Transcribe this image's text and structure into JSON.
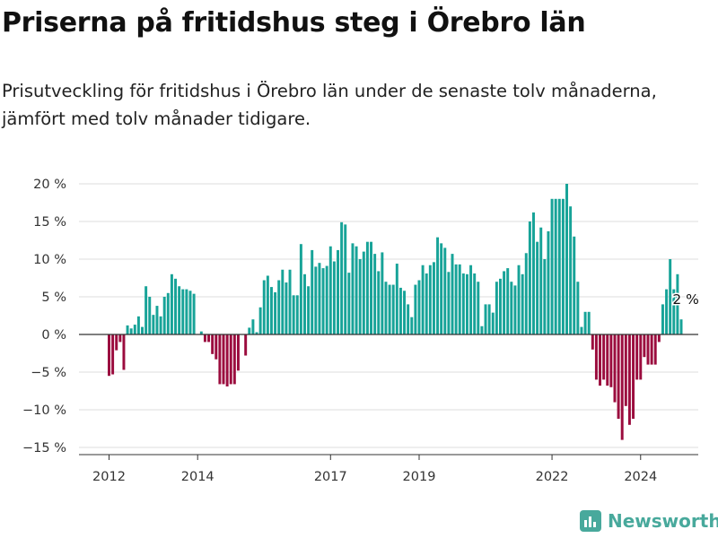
{
  "title": "Priserna på fritidshus steg i Örebro län",
  "subtitle": "Prisutveckling för fritidshus i Örebro län under de senaste tolv månaderna, jämfört med tolv månader tidigare.",
  "brand": {
    "name": "Newsworthy",
    "icon": "newsworthy-logo-icon",
    "color": "#48a99c"
  },
  "colors": {
    "positive": "#17a398",
    "negative": "#9b0c3e",
    "grid": "#dddddd",
    "zero": "#333333"
  },
  "chart_data": {
    "type": "bar",
    "ylim": [
      -15,
      20
    ],
    "grid": true,
    "y_ticks": [
      {
        "value": 20,
        "label": "20 %"
      },
      {
        "value": 15,
        "label": "15 %"
      },
      {
        "value": 10,
        "label": "10 %"
      },
      {
        "value": 5,
        "label": "5 %"
      },
      {
        "value": 0,
        "label": "0 %"
      },
      {
        "value": -5,
        "label": "−5 %"
      },
      {
        "value": -10,
        "label": "−10 %"
      },
      {
        "value": -15,
        "label": "−15 %"
      }
    ],
    "x_ticks": [
      {
        "label": "2012",
        "index": 0
      },
      {
        "label": "2014",
        "index": 24
      },
      {
        "label": "2017",
        "index": 60
      },
      {
        "label": "2019",
        "index": 84
      },
      {
        "label": "2022",
        "index": 120
      },
      {
        "label": "2024",
        "index": 144
      }
    ],
    "start": "2012-01",
    "frequency": "monthly",
    "values": [
      -5.5,
      -5.3,
      -2.1,
      -1.0,
      -4.7,
      1.2,
      0.8,
      1.3,
      2.4,
      1.0,
      6.4,
      5.0,
      2.6,
      3.8,
      2.4,
      5.0,
      5.5,
      8.0,
      7.4,
      6.4,
      6.0,
      6.0,
      5.8,
      5.4,
      0,
      0.4,
      -1.0,
      -1.0,
      -2.6,
      -3.3,
      -6.6,
      -6.6,
      -6.9,
      -6.6,
      -6.6,
      -4.8,
      0,
      -2.8,
      0.9,
      2.0,
      0.3,
      3.6,
      7.2,
      7.8,
      6.3,
      5.6,
      7.2,
      8.6,
      6.9,
      8.6,
      5.2,
      5.2,
      12.0,
      8.0,
      6.4,
      11.2,
      9.0,
      9.5,
      8.8,
      9.1,
      11.7,
      9.7,
      11.2,
      14.9,
      14.6,
      8.2,
      12.1,
      11.7,
      10.0,
      11.0,
      12.3,
      12.3,
      10.7,
      8.4,
      10.9,
      7.0,
      6.6,
      6.6,
      9.4,
      6.2,
      5.8,
      4.0,
      2.3,
      6.6,
      7.2,
      9.2,
      8.1,
      9.2,
      9.6,
      12.9,
      12.1,
      11.5,
      8.3,
      10.7,
      9.3,
      9.3,
      8.1,
      8.0,
      9.2,
      8.1,
      7.0,
      1.1,
      4.0,
      4.0,
      2.9,
      7.0,
      7.4,
      8.4,
      8.8,
      7.0,
      6.5,
      9.2,
      8.0,
      10.8,
      15.0,
      16.2,
      12.3,
      14.2,
      10.0,
      13.7,
      18.0,
      18.0,
      18.0,
      18.0,
      20.0,
      17.0,
      13.0,
      7.0,
      1.0,
      3.0,
      3.0,
      -2.0,
      -6.0,
      -6.8,
      -6.0,
      -6.8,
      -7.0,
      -9.0,
      -11.2,
      -14.0,
      -9.5,
      -12.0,
      -11.2,
      -6.0,
      -6.0,
      -3.0,
      -4.0,
      -4.0,
      -4.0,
      -1.0,
      4.0,
      6.0,
      10.0,
      6.0,
      8.0,
      2.0
    ],
    "annotation": {
      "label": "2 %",
      "index": 156,
      "value": 2.0
    }
  }
}
